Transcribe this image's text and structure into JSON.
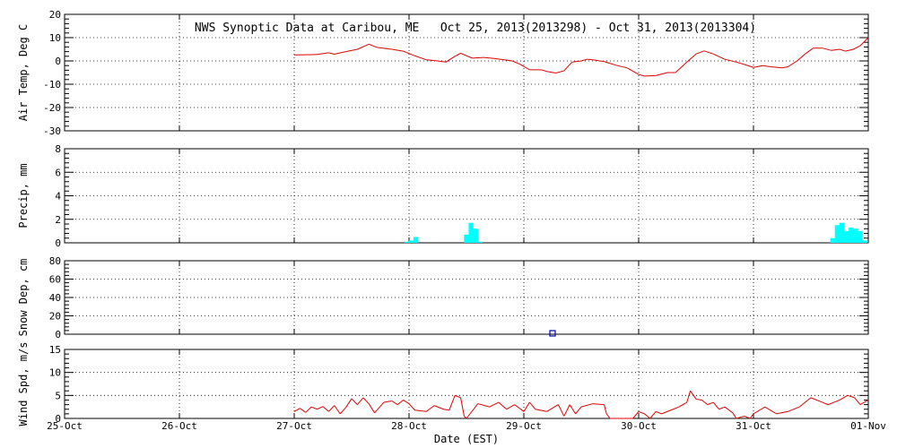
{
  "title": "NWS Synoptic Data at Caribou, ME   Oct 25, 2013(2013298) - Oct 31, 2013(2013304)",
  "x_axis": {
    "label": "Date (EST)",
    "ticks": [
      "25-Oct",
      "26-Oct",
      "27-Oct",
      "28-Oct",
      "29-Oct",
      "30-Oct",
      "31-Oct",
      "01-Nov"
    ]
  },
  "colors": {
    "temp": "#e00000",
    "wind": "#e00000",
    "precip": "#00ffff",
    "snow": "#0000aa",
    "grid": "#000000"
  },
  "chart_data": [
    {
      "type": "line",
      "ylabel": "Air Temp, Deg C",
      "ylim": [
        -30,
        20
      ],
      "yticks": [
        "20",
        "10",
        "0",
        "-10",
        "-20",
        "-30"
      ],
      "x_units": "days since 25-Oct 00:00 EST",
      "series": [
        {
          "values": [
            [
              2.0,
              2.6
            ],
            [
              2.15,
              2.7
            ],
            [
              2.2,
              2.8
            ],
            [
              2.3,
              3.5
            ],
            [
              2.35,
              2.9
            ],
            [
              2.45,
              4.0
            ],
            [
              2.55,
              5.0
            ],
            [
              2.62,
              6.5
            ],
            [
              2.65,
              7.2
            ],
            [
              2.72,
              5.8
            ],
            [
              2.85,
              5.0
            ],
            [
              2.95,
              4.2
            ],
            [
              3.05,
              2.2
            ],
            [
              3.15,
              0.5
            ],
            [
              3.25,
              0.0
            ],
            [
              3.32,
              -0.5
            ],
            [
              3.4,
              2.0
            ],
            [
              3.45,
              3.3
            ],
            [
              3.55,
              1.2
            ],
            [
              3.65,
              1.5
            ],
            [
              3.75,
              1.0
            ],
            [
              3.9,
              0.0
            ],
            [
              3.97,
              -1.5
            ],
            [
              4.05,
              -3.8
            ],
            [
              4.15,
              -3.8
            ],
            [
              4.2,
              -4.5
            ],
            [
              4.28,
              -5.2
            ],
            [
              4.35,
              -4.2
            ],
            [
              4.42,
              -0.5
            ],
            [
              4.5,
              0.0
            ],
            [
              4.55,
              0.7
            ],
            [
              4.6,
              0.5
            ],
            [
              4.7,
              -0.3
            ],
            [
              4.8,
              -1.8
            ],
            [
              4.9,
              -3.0
            ],
            [
              5.0,
              -5.8
            ],
            [
              5.05,
              -6.5
            ],
            [
              5.15,
              -6.3
            ],
            [
              5.25,
              -5.0
            ],
            [
              5.32,
              -5.0
            ],
            [
              5.42,
              -0.5
            ],
            [
              5.5,
              3.0
            ],
            [
              5.57,
              4.3
            ],
            [
              5.65,
              3.0
            ],
            [
              5.75,
              0.7
            ],
            [
              5.85,
              -0.5
            ],
            [
              5.92,
              -1.5
            ],
            [
              6.0,
              -2.8
            ],
            [
              6.08,
              -2.0
            ],
            [
              6.15,
              -2.5
            ],
            [
              6.25,
              -3.0
            ],
            [
              6.3,
              -2.5
            ],
            [
              6.38,
              0.0
            ],
            [
              6.45,
              3.0
            ],
            [
              6.52,
              5.5
            ],
            [
              6.6,
              5.5
            ],
            [
              6.68,
              4.5
            ],
            [
              6.75,
              5.0
            ],
            [
              6.8,
              4.2
            ],
            [
              6.87,
              5.0
            ],
            [
              6.93,
              6.5
            ],
            [
              6.97,
              8.5
            ],
            [
              7.0,
              10.0
            ]
          ]
        }
      ]
    },
    {
      "type": "bar",
      "ylabel": "Precip, mm",
      "ylim": [
        0,
        8
      ],
      "yticks": [
        "8",
        "6",
        "4",
        "2",
        "0"
      ],
      "x_units": "days since 25-Oct 00:00 EST",
      "bar_width_days": 0.042,
      "series": [
        {
          "values": [
            [
              2.98,
              0.1
            ],
            [
              3.02,
              0.2
            ],
            [
              3.06,
              0.5
            ],
            [
              3.5,
              0.7
            ],
            [
              3.54,
              1.7
            ],
            [
              3.58,
              1.2
            ],
            [
              3.62,
              0.1
            ],
            [
              6.69,
              0.4
            ],
            [
              6.73,
              1.5
            ],
            [
              6.77,
              1.7
            ],
            [
              6.81,
              1.0
            ],
            [
              6.85,
              1.3
            ],
            [
              6.89,
              1.2
            ],
            [
              6.93,
              1.0
            ],
            [
              6.97,
              0.2
            ]
          ]
        }
      ]
    },
    {
      "type": "scatter",
      "ylabel": "Snow Dep, cm",
      "ylim": [
        0,
        80
      ],
      "yticks": [
        "80",
        "60",
        "40",
        "20",
        "0"
      ],
      "x_units": "days since 25-Oct 00:00 EST",
      "series": [
        {
          "values": [
            [
              4.25,
              1.0
            ]
          ]
        }
      ]
    },
    {
      "type": "line",
      "ylabel": "Wind Spd, m/s",
      "ylim": [
        0,
        15
      ],
      "yticks": [
        "15",
        "10",
        "5",
        "0"
      ],
      "x_units": "days since 25-Oct 00:00 EST",
      "series": [
        {
          "values": [
            [
              2.0,
              1.5
            ],
            [
              2.05,
              2.2
            ],
            [
              2.1,
              1.3
            ],
            [
              2.15,
              2.5
            ],
            [
              2.2,
              2.0
            ],
            [
              2.25,
              2.6
            ],
            [
              2.3,
              1.5
            ],
            [
              2.35,
              2.8
            ],
            [
              2.4,
              1.0
            ],
            [
              2.45,
              2.4
            ],
            [
              2.5,
              4.3
            ],
            [
              2.55,
              3.0
            ],
            [
              2.6,
              4.5
            ],
            [
              2.65,
              3.2
            ],
            [
              2.7,
              1.2
            ],
            [
              2.78,
              3.5
            ],
            [
              2.85,
              3.8
            ],
            [
              2.9,
              3.0
            ],
            [
              2.95,
              4.0
            ],
            [
              3.0,
              3.2
            ],
            [
              3.05,
              1.8
            ],
            [
              3.15,
              1.5
            ],
            [
              3.22,
              2.8
            ],
            [
              3.3,
              2.0
            ],
            [
              3.35,
              1.8
            ],
            [
              3.4,
              5.0
            ],
            [
              3.45,
              4.5
            ],
            [
              3.48,
              0.5
            ],
            [
              3.5,
              0.0
            ],
            [
              3.6,
              3.2
            ],
            [
              3.7,
              2.5
            ],
            [
              3.78,
              3.5
            ],
            [
              3.85,
              2.0
            ],
            [
              3.92,
              3.0
            ],
            [
              4.0,
              1.5
            ],
            [
              4.05,
              3.5
            ],
            [
              4.1,
              2.0
            ],
            [
              4.2,
              1.5
            ],
            [
              4.3,
              3.0
            ],
            [
              4.35,
              0.5
            ],
            [
              4.4,
              3.0
            ],
            [
              4.45,
              1.0
            ],
            [
              4.5,
              2.5
            ],
            [
              4.6,
              3.2
            ],
            [
              4.7,
              3.0
            ],
            [
              4.72,
              1.0
            ],
            [
              4.75,
              0.0
            ],
            [
              4.95,
              0.0
            ],
            [
              5.0,
              1.5
            ],
            [
              5.05,
              1.0
            ],
            [
              5.1,
              0.0
            ],
            [
              5.15,
              1.5
            ],
            [
              5.2,
              1.0
            ],
            [
              5.3,
              2.0
            ],
            [
              5.35,
              2.5
            ],
            [
              5.42,
              3.5
            ],
            [
              5.45,
              6.0
            ],
            [
              5.5,
              4.2
            ],
            [
              5.55,
              4.0
            ],
            [
              5.6,
              3.0
            ],
            [
              5.65,
              3.5
            ],
            [
              5.7,
              2.0
            ],
            [
              5.75,
              2.5
            ],
            [
              5.82,
              1.2
            ],
            [
              5.85,
              0.0
            ],
            [
              5.92,
              0.5
            ],
            [
              5.97,
              0.0
            ],
            [
              6.0,
              1.0
            ],
            [
              6.1,
              2.5
            ],
            [
              6.2,
              1.0
            ],
            [
              6.3,
              1.5
            ],
            [
              6.4,
              2.5
            ],
            [
              6.5,
              4.5
            ],
            [
              6.6,
              3.5
            ],
            [
              6.65,
              3.0
            ],
            [
              6.7,
              3.5
            ],
            [
              6.75,
              4.0
            ],
            [
              6.82,
              5.0
            ],
            [
              6.88,
              4.5
            ],
            [
              6.93,
              3.0
            ],
            [
              7.0,
              4.0
            ]
          ]
        }
      ]
    }
  ]
}
